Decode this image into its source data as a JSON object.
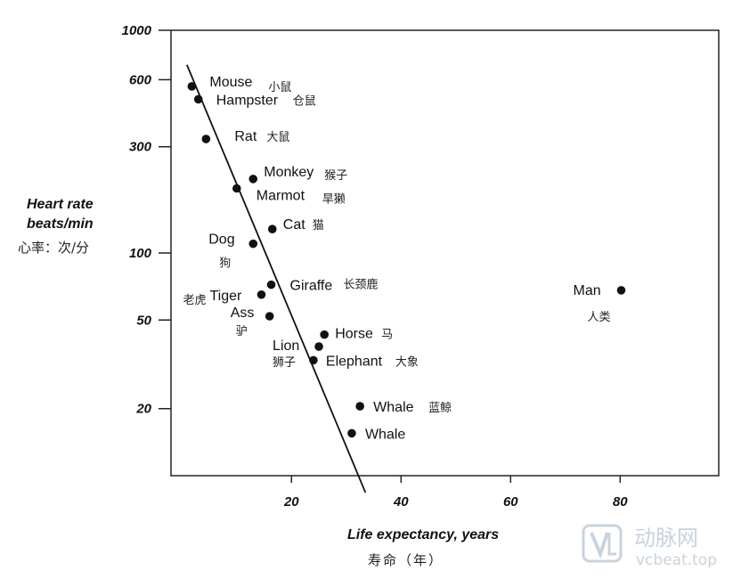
{
  "chart_data": {
    "type": "scatter",
    "xlabel": "Life expectancy, years",
    "xlabel_cn": "寿命（年）",
    "ylabel_lines": [
      "Heart rate",
      "beats/min"
    ],
    "ylabel_cn": "心率：次/分",
    "xlim": [
      -2,
      98
    ],
    "ylim": [
      10,
      1000
    ],
    "yscale": "log",
    "xticks": [
      20,
      40,
      60,
      80
    ],
    "yticks": [
      20,
      50,
      100,
      300,
      600,
      1000
    ],
    "points": [
      {
        "name": "Mouse",
        "cn": "小鼠",
        "x": 1.8,
        "y": 560
      },
      {
        "name": "Hampster",
        "cn": "仓鼠",
        "x": 3,
        "y": 490
      },
      {
        "name": "Rat",
        "cn": "大鼠",
        "x": 4.4,
        "y": 325
      },
      {
        "name": "Monkey",
        "cn": "猴子",
        "x": 13,
        "y": 215
      },
      {
        "name": "Marmot",
        "cn": "旱獭",
        "x": 10,
        "y": 195
      },
      {
        "name": "Cat",
        "cn": "猫",
        "x": 16.5,
        "y": 128
      },
      {
        "name": "Dog",
        "cn": "狗",
        "x": 13,
        "y": 110
      },
      {
        "name": "Giraffe",
        "cn": "长颈鹿",
        "x": 16.3,
        "y": 72
      },
      {
        "name": "Tiger",
        "cn": "老虎",
        "x": 14.5,
        "y": 65
      },
      {
        "name": "Ass",
        "cn": "驴",
        "x": 16,
        "y": 52
      },
      {
        "name": "Horse",
        "cn": "马",
        "x": 26,
        "y": 43
      },
      {
        "name": "Lion",
        "cn": "狮子",
        "x": 25,
        "y": 38
      },
      {
        "name": "Elephant",
        "cn": "大象",
        "x": 24,
        "y": 33
      },
      {
        "name": "Whale",
        "cn": "蓝鲸",
        "x": 32.5,
        "y": 20.5
      },
      {
        "name": "Whale",
        "cn": "",
        "x": 31,
        "y": 15.5
      },
      {
        "name": "Man",
        "cn": "人类",
        "x": 80.2,
        "y": 68
      }
    ],
    "fit_line": {
      "x": [
        0.9,
        33.5
      ],
      "y": [
        700,
        8.4
      ]
    }
  },
  "watermark": {
    "brand_cn": "动脉网",
    "site": "vcbeat.top",
    "color": "#c9d3dc"
  }
}
